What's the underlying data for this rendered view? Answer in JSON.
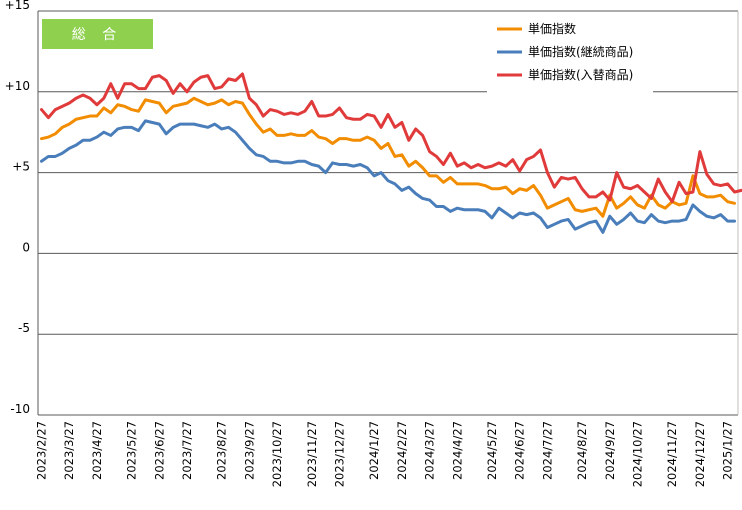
{
  "chart_data": {
    "type": "line",
    "title": "",
    "xlabel": "",
    "ylabel": "",
    "badge": "総 合",
    "ylim": [
      -10,
      15
    ],
    "y_ticks": [
      {
        "value": 15,
        "label": "+15"
      },
      {
        "value": 10,
        "label": "+10"
      },
      {
        "value": 5,
        "label": "+5"
      },
      {
        "value": 0,
        "label": "0"
      },
      {
        "value": -5,
        "label": "-5"
      },
      {
        "value": -10,
        "label": "-10"
      }
    ],
    "x_ticks": [
      {
        "index": 0,
        "label": "2023/2/27"
      },
      {
        "index": 4,
        "label": "2023/3/27"
      },
      {
        "index": 8,
        "label": "2023/4/27"
      },
      {
        "index": 13,
        "label": "2023/5/27"
      },
      {
        "index": 17,
        "label": "2023/6/27"
      },
      {
        "index": 21,
        "label": "2023/7/27"
      },
      {
        "index": 26,
        "label": "2023/8/27"
      },
      {
        "index": 30,
        "label": "2023/9/27"
      },
      {
        "index": 34,
        "label": "2023/10/27"
      },
      {
        "index": 39,
        "label": "2023/11/27"
      },
      {
        "index": 43,
        "label": "2023/12/27"
      },
      {
        "index": 48,
        "label": "2024/1/27"
      },
      {
        "index": 52,
        "label": "2024/2/27"
      },
      {
        "index": 56,
        "label": "2024/3/27"
      },
      {
        "index": 60,
        "label": "2024/4/27"
      },
      {
        "index": 65,
        "label": "2024/5/27"
      },
      {
        "index": 69,
        "label": "2024/6/27"
      },
      {
        "index": 73,
        "label": "2024/7/27"
      },
      {
        "index": 78,
        "label": "2024/8/27"
      },
      {
        "index": 82,
        "label": "2024/9/27"
      },
      {
        "index": 86,
        "label": "2024/10/27"
      },
      {
        "index": 91,
        "label": "2024/11/27"
      },
      {
        "index": 95,
        "label": "2024/12/27"
      },
      {
        "index": 99,
        "label": "2025/1/27"
      }
    ],
    "grid": "horizontal",
    "legend_position": "top-right",
    "series": [
      {
        "name": "単価指数",
        "color": "#f28c00",
        "values": [
          7.1,
          7.2,
          7.4,
          7.8,
          8.0,
          8.3,
          8.4,
          8.5,
          8.5,
          9.0,
          8.7,
          9.2,
          9.1,
          8.9,
          8.8,
          9.5,
          9.4,
          9.3,
          8.7,
          9.1,
          9.2,
          9.3,
          9.6,
          9.4,
          9.2,
          9.3,
          9.5,
          9.2,
          9.4,
          9.3,
          8.6,
          8.0,
          7.5,
          7.7,
          7.3,
          7.3,
          7.4,
          7.3,
          7.3,
          7.6,
          7.2,
          7.1,
          6.8,
          7.1,
          7.1,
          7.0,
          7.0,
          7.2,
          7.0,
          6.5,
          6.8,
          6.0,
          6.1,
          5.4,
          5.7,
          5.3,
          4.8,
          4.8,
          4.4,
          4.7,
          4.3,
          4.3,
          4.3,
          4.3,
          4.2,
          4.0,
          4.0,
          4.1,
          3.7,
          4.0,
          3.9,
          4.2,
          3.6,
          2.8,
          3.0,
          3.2,
          3.4,
          2.7,
          2.6,
          2.7,
          2.8,
          2.3,
          3.6,
          2.8,
          3.1,
          3.5,
          3.0,
          2.8,
          3.6,
          3.0,
          2.8,
          3.2,
          3.0,
          3.1,
          4.8,
          3.7,
          3.5,
          3.5,
          3.6,
          3.2,
          3.1
        ]
      },
      {
        "name": "単価指数(継続商品)",
        "color": "#4a7ebb",
        "values": [
          5.7,
          6.0,
          6.0,
          6.2,
          6.5,
          6.7,
          7.0,
          7.0,
          7.2,
          7.5,
          7.3,
          7.7,
          7.8,
          7.8,
          7.6,
          8.2,
          8.1,
          8.0,
          7.4,
          7.8,
          8.0,
          8.0,
          8.0,
          7.9,
          7.8,
          8.0,
          7.7,
          7.8,
          7.5,
          7.0,
          6.5,
          6.1,
          6.0,
          5.7,
          5.7,
          5.6,
          5.6,
          5.7,
          5.7,
          5.5,
          5.4,
          5.0,
          5.6,
          5.5,
          5.5,
          5.4,
          5.5,
          5.3,
          4.8,
          5.0,
          4.5,
          4.3,
          3.9,
          4.1,
          3.7,
          3.4,
          3.3,
          2.9,
          2.9,
          2.6,
          2.8,
          2.7,
          2.7,
          2.7,
          2.6,
          2.2,
          2.8,
          2.5,
          2.2,
          2.5,
          2.4,
          2.5,
          2.2,
          1.6,
          1.8,
          2.0,
          2.1,
          1.5,
          1.7,
          1.9,
          2.0,
          1.3,
          2.3,
          1.8,
          2.1,
          2.5,
          2.0,
          1.9,
          2.4,
          2.0,
          1.9,
          2.0,
          2.0,
          2.1,
          3.0,
          2.6,
          2.3,
          2.2,
          2.4,
          2.0,
          2.0
        ]
      },
      {
        "name": "単価指数(入替商品)",
        "color": "#e03a3a",
        "values": [
          8.9,
          8.4,
          8.9,
          9.1,
          9.3,
          9.6,
          9.8,
          9.6,
          9.2,
          9.6,
          10.5,
          9.6,
          10.5,
          10.5,
          10.2,
          10.2,
          10.9,
          11.0,
          10.7,
          9.9,
          10.5,
          10.0,
          10.6,
          10.9,
          11.0,
          10.2,
          10.3,
          10.8,
          10.7,
          11.1,
          9.6,
          9.2,
          8.5,
          8.9,
          8.8,
          8.6,
          8.7,
          8.6,
          8.8,
          9.4,
          8.5,
          8.5,
          8.6,
          9.0,
          8.4,
          8.3,
          8.3,
          8.6,
          8.5,
          7.8,
          8.6,
          7.8,
          8.1,
          7.0,
          7.7,
          7.3,
          6.3,
          6.0,
          5.5,
          6.2,
          5.4,
          5.6,
          5.3,
          5.5,
          5.3,
          5.4,
          5.6,
          5.4,
          5.8,
          5.1,
          5.8,
          6.0,
          6.4,
          5.0,
          4.1,
          4.7,
          4.6,
          4.7,
          4.0,
          3.5,
          3.5,
          3.8,
          3.3,
          5.0,
          4.1,
          4.0,
          4.2,
          3.8,
          3.4,
          4.6,
          3.8,
          3.2,
          4.4,
          3.7,
          3.8,
          6.3,
          4.9,
          4.3,
          4.2,
          4.3,
          3.8,
          3.9
        ]
      }
    ]
  }
}
